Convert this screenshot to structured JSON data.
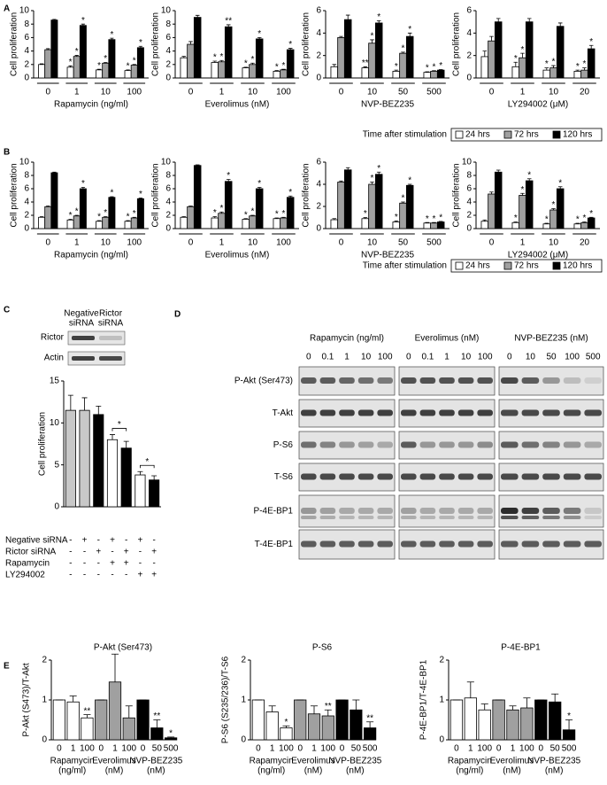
{
  "panel_labels": [
    "A",
    "B",
    "C",
    "D",
    "E"
  ],
  "legend_title": "Time after stimulation",
  "chart_data": [
    {
      "type": "grouped_bar",
      "x_label": "Rapamycin (ng/ml)",
      "y_label": "Cell proliferation",
      "categories": [
        "0",
        "1",
        "10",
        "100"
      ],
      "ylim": [
        0,
        10
      ],
      "yticks": [
        0,
        2,
        4,
        6,
        8,
        10
      ],
      "series": [
        {
          "name": "24 hrs",
          "color": "#ffffff",
          "values": [
            2,
            1.6,
            1.2,
            1.1
          ],
          "errors": [
            0.1,
            0.2,
            0.1,
            0.1
          ],
          "significance": [
            null,
            "*",
            "*",
            "*"
          ]
        },
        {
          "name": "72 hrs",
          "color": "#a0a0a0",
          "values": [
            4.2,
            3.2,
            2.2,
            1.9
          ],
          "errors": [
            0.15,
            0.15,
            0.1,
            0.1
          ],
          "significance": [
            null,
            "*",
            "*",
            "*"
          ]
        },
        {
          "name": "120 hrs",
          "color": "#000000",
          "values": [
            8.6,
            7.8,
            5.7,
            4.5
          ],
          "errors": [
            0.1,
            0.2,
            0.2,
            0.2
          ],
          "significance": [
            null,
            "*",
            "*",
            "*"
          ]
        }
      ]
    },
    {
      "type": "grouped_bar",
      "x_label": "Everolimus (nM)",
      "y_label": "Cell proliferation",
      "categories": [
        "0",
        "1",
        "10",
        "100"
      ],
      "ylim": [
        0,
        10
      ],
      "yticks": [
        0,
        2,
        4,
        6,
        8,
        10
      ],
      "series": [
        {
          "name": "24 hrs",
          "color": "#ffffff",
          "values": [
            3,
            2.3,
            1.5,
            1
          ],
          "errors": [
            0.2,
            0.2,
            0.1,
            0.1
          ],
          "significance": [
            null,
            "*",
            "*",
            "*"
          ]
        },
        {
          "name": "72 hrs",
          "color": "#a0a0a0",
          "values": [
            5,
            2.4,
            2,
            1.2
          ],
          "errors": [
            0.4,
            0.2,
            0.2,
            0.1
          ],
          "significance": [
            null,
            "*",
            "*",
            "*"
          ]
        },
        {
          "name": "120 hrs",
          "color": "#000000",
          "values": [
            9,
            7.6,
            5.8,
            4.2
          ],
          "errors": [
            0.3,
            0.3,
            0.2,
            0.2
          ],
          "significance": [
            null,
            "**",
            "*",
            "*"
          ]
        }
      ]
    },
    {
      "type": "grouped_bar",
      "x_label": "NVP-BEZ235",
      "y_label": "Cell proliferation",
      "categories": [
        "0",
        "10",
        "50",
        "500"
      ],
      "ylim": [
        0,
        6
      ],
      "yticks": [
        0,
        2,
        4,
        6
      ],
      "series": [
        {
          "name": "24 hrs",
          "color": "#ffffff",
          "values": [
            1,
            0.9,
            0.6,
            0.5
          ],
          "errors": [
            0.2,
            0.1,
            0.1,
            0.05
          ],
          "significance": [
            null,
            "**",
            "*",
            "*"
          ]
        },
        {
          "name": "72 hrs",
          "color": "#a0a0a0",
          "values": [
            3.6,
            3.1,
            2.2,
            0.6
          ],
          "errors": [
            0.1,
            0.3,
            0.1,
            0.05
          ],
          "significance": [
            null,
            "*",
            "*",
            "*"
          ]
        },
        {
          "name": "120 hrs",
          "color": "#000000",
          "values": [
            5.2,
            4.9,
            3.7,
            0.7
          ],
          "errors": [
            0.4,
            0.2,
            0.3,
            0.05
          ],
          "significance": [
            null,
            "*",
            "*",
            "*"
          ]
        }
      ]
    },
    {
      "type": "grouped_bar",
      "x_label": "LY294002 (μM)",
      "y_label": "Cell proliferation",
      "categories": [
        "0",
        "1",
        "10",
        "20"
      ],
      "ylim": [
        0,
        6
      ],
      "yticks": [
        0,
        2,
        4,
        6
      ],
      "series": [
        {
          "name": "24 hrs",
          "color": "#ffffff",
          "values": [
            1.9,
            1,
            0.7,
            0.6
          ],
          "errors": [
            0.5,
            0.4,
            0.2,
            0.1
          ],
          "significance": [
            null,
            "*",
            "*",
            "*"
          ]
        },
        {
          "name": "72 hrs",
          "color": "#a0a0a0",
          "values": [
            3.3,
            1.8,
            0.9,
            0.7
          ],
          "errors": [
            0.4,
            0.4,
            0.2,
            0.2
          ],
          "significance": [
            null,
            "*",
            "*",
            "*"
          ]
        },
        {
          "name": "120 hrs",
          "color": "#000000",
          "values": [
            5,
            5,
            4.6,
            2.6
          ],
          "errors": [
            0.3,
            0.3,
            0.3,
            0.3
          ],
          "significance": [
            null,
            null,
            null,
            "*"
          ]
        }
      ]
    },
    {
      "type": "grouped_bar",
      "x_label": "Rapamycin (ng/ml)",
      "y_label": "Cell proliferation",
      "categories": [
        "0",
        "1",
        "10",
        "100"
      ],
      "ylim": [
        0,
        10
      ],
      "yticks": [
        0,
        2,
        4,
        6,
        8,
        10
      ],
      "series": [
        {
          "name": "24 hrs",
          "color": "#ffffff",
          "values": [
            1.7,
            1.3,
            1.1,
            1.1
          ],
          "errors": [
            0.1,
            0.1,
            0.1,
            0.1
          ],
          "significance": [
            null,
            "*",
            "*",
            "*"
          ]
        },
        {
          "name": "72 hrs",
          "color": "#a0a0a0",
          "values": [
            3.3,
            1.9,
            1.7,
            1.6
          ],
          "errors": [
            0.1,
            0.1,
            0.1,
            0.1
          ],
          "significance": [
            null,
            "*",
            "*",
            "*"
          ]
        },
        {
          "name": "120 hrs",
          "color": "#000000",
          "values": [
            8.4,
            6,
            4.7,
            4.5
          ],
          "errors": [
            0.1,
            0.2,
            0.1,
            0.1
          ],
          "significance": [
            null,
            "*",
            "*",
            "*"
          ]
        }
      ]
    },
    {
      "type": "grouped_bar",
      "x_label": "Everolimus (nM)",
      "y_label": "Cell proliferation",
      "categories": [
        "0",
        "1",
        "10",
        "100"
      ],
      "ylim": [
        0,
        10
      ],
      "yticks": [
        0,
        2,
        4,
        6,
        8,
        10
      ],
      "series": [
        {
          "name": "24 hrs",
          "color": "#ffffff",
          "values": [
            1.7,
            1.6,
            1.4,
            1.5
          ],
          "errors": [
            0.1,
            0.2,
            0.1,
            0.1
          ],
          "significance": [
            null,
            "*",
            "*",
            "*"
          ]
        },
        {
          "name": "72 hrs",
          "color": "#a0a0a0",
          "values": [
            3.3,
            2.3,
            1.9,
            1.6
          ],
          "errors": [
            0.1,
            0.2,
            0.1,
            0.1
          ],
          "significance": [
            null,
            "*",
            "*",
            "*"
          ]
        },
        {
          "name": "120 hrs",
          "color": "#000000",
          "values": [
            9.5,
            7.1,
            6,
            4.7
          ],
          "errors": [
            0.1,
            0.3,
            0.2,
            0.2
          ],
          "significance": [
            null,
            "*",
            "*",
            "*"
          ]
        }
      ]
    },
    {
      "type": "grouped_bar",
      "x_label": "NVP-BEZ235",
      "y_label": "Cell proliferation",
      "categories": [
        "0",
        "10",
        "50",
        "500"
      ],
      "ylim": [
        0,
        6
      ],
      "yticks": [
        0,
        2,
        4,
        6
      ],
      "series": [
        {
          "name": "24 hrs",
          "color": "#ffffff",
          "values": [
            0.8,
            0.9,
            0.6,
            0.5
          ],
          "errors": [
            0.1,
            0.1,
            0.1,
            0.05
          ],
          "significance": [
            null,
            "*",
            "*",
            "*"
          ]
        },
        {
          "name": "72 hrs",
          "color": "#a0a0a0",
          "values": [
            4.2,
            4,
            2.3,
            0.5
          ],
          "errors": [
            0.1,
            0.2,
            0.1,
            0.05
          ],
          "significance": [
            null,
            "*",
            "*",
            "*"
          ]
        },
        {
          "name": "120 hrs",
          "color": "#000000",
          "values": [
            5.3,
            4.9,
            3.9,
            0.6
          ],
          "errors": [
            0.2,
            0.2,
            0.1,
            0.05
          ],
          "significance": [
            null,
            "*",
            "*",
            "*"
          ]
        }
      ]
    },
    {
      "type": "grouped_bar",
      "x_label": "LY294002 (μM)",
      "y_label": "Cell proliferation",
      "categories": [
        "0",
        "1",
        "10",
        "20"
      ],
      "ylim": [
        0,
        10
      ],
      "yticks": [
        0,
        2,
        4,
        6,
        8,
        10
      ],
      "series": [
        {
          "name": "24 hrs",
          "color": "#ffffff",
          "values": [
            1.1,
            0.9,
            0.7,
            0.7
          ],
          "errors": [
            0.2,
            0.1,
            0.1,
            0.1
          ],
          "significance": [
            null,
            "*",
            "*",
            "*"
          ]
        },
        {
          "name": "72 hrs",
          "color": "#a0a0a0",
          "values": [
            5.2,
            5,
            2.8,
            0.9
          ],
          "errors": [
            0.3,
            0.3,
            0.2,
            0.1
          ],
          "significance": [
            null,
            "*",
            "*",
            "*"
          ]
        },
        {
          "name": "120 hrs",
          "color": "#000000",
          "values": [
            8.5,
            7.2,
            6,
            1.6
          ],
          "errors": [
            0.3,
            0.3,
            0.3,
            0.1
          ],
          "significance": [
            null,
            "*",
            "*",
            "*"
          ]
        }
      ]
    },
    {
      "type": "bar",
      "y_label": "Cell proliferation",
      "ylim": [
        0,
        15
      ],
      "yticks": [
        0,
        5,
        10,
        15
      ],
      "values": [
        11.5,
        11.5,
        11,
        8,
        7,
        3.8,
        3.2
      ],
      "errors": [
        1.8,
        1.5,
        1,
        0.6,
        0.8,
        0.4,
        0.5
      ],
      "colors": [
        "#c8c8c8",
        "#c8c8c8",
        "#000000",
        "#ffffff",
        "#000000",
        "#ffffff",
        "#000000"
      ],
      "significance": [
        null,
        null,
        null,
        null,
        "*",
        null,
        "*"
      ],
      "conditions": [
        {
          "name": "Negative siRNA",
          "signs": [
            "-",
            "+",
            "-",
            "+",
            "-",
            "+",
            "-"
          ]
        },
        {
          "name": "Rictor siRNA",
          "signs": [
            "-",
            "-",
            "+",
            "-",
            "+",
            "-",
            "+"
          ]
        },
        {
          "name": "Rapamycin",
          "signs": [
            "-",
            "-",
            "-",
            "+",
            "+",
            "-",
            "-"
          ]
        },
        {
          "name": "LY294002",
          "signs": [
            "-",
            "-",
            "-",
            "-",
            "-",
            "+",
            "+"
          ]
        }
      ]
    },
    {
      "type": "bar",
      "title": "P-Akt (Ser473)",
      "y_label": "P-Akt (S473)/T-Akt",
      "ylim": [
        0,
        2
      ],
      "yticks": [
        0,
        1,
        2
      ],
      "categories": [
        "0",
        "1",
        "100",
        "0",
        "1",
        "100",
        "0",
        "50",
        "500"
      ],
      "groups": [
        [
          "Rapamycin",
          "(ng/ml)"
        ],
        [
          "Everolimus",
          "(nM)"
        ],
        [
          "NVP-BEZ235",
          "(nM)"
        ]
      ],
      "values": [
        1,
        0.95,
        0.55,
        1,
        1.45,
        0.55,
        1,
        0.3,
        0.05
      ],
      "errors": [
        0,
        0.15,
        0.08,
        0,
        0.7,
        0.3,
        0,
        0.2,
        0.02
      ],
      "colors": [
        "#ffffff",
        "#ffffff",
        "#ffffff",
        "#a0a0a0",
        "#a0a0a0",
        "#a0a0a0",
        "#000000",
        "#000000",
        "#000000"
      ],
      "significance": [
        null,
        null,
        "**",
        null,
        null,
        null,
        null,
        "**",
        "*"
      ]
    },
    {
      "type": "bar",
      "title": "P-S6",
      "y_label": "P-S6 (S235/236)/T-S6",
      "ylim": [
        0,
        2
      ],
      "yticks": [
        0,
        1,
        2
      ],
      "categories": [
        "0",
        "1",
        "100",
        "0",
        "1",
        "100",
        "0",
        "50",
        "500"
      ],
      "groups": [
        [
          "Rapamycin",
          "(ng/ml)"
        ],
        [
          "Everolimus",
          "(nM)"
        ],
        [
          "NVP-BEZ235",
          "(nM)"
        ]
      ],
      "values": [
        1,
        0.7,
        0.3,
        1,
        0.65,
        0.6,
        1,
        0.75,
        0.3
      ],
      "errors": [
        0,
        0.15,
        0.05,
        0,
        0.2,
        0.15,
        0,
        0.25,
        0.15
      ],
      "colors": [
        "#ffffff",
        "#ffffff",
        "#ffffff",
        "#a0a0a0",
        "#a0a0a0",
        "#a0a0a0",
        "#000000",
        "#000000",
        "#000000"
      ],
      "significance": [
        null,
        null,
        "*",
        null,
        null,
        "**",
        null,
        null,
        "**"
      ]
    },
    {
      "type": "bar",
      "title": "P-4E-BP1",
      "y_label": "P-4E-BP1/T-4E-BP1",
      "ylim": [
        0,
        2
      ],
      "yticks": [
        0,
        1,
        2
      ],
      "categories": [
        "0",
        "1",
        "100",
        "0",
        "1",
        "100",
        "0",
        "50",
        "500"
      ],
      "groups": [
        [
          "Rapamycin",
          "(ng/ml)"
        ],
        [
          "Everolimus",
          "(nM)"
        ],
        [
          "NVP-BEZ235",
          "(nM)"
        ]
      ],
      "values": [
        1,
        1.05,
        0.75,
        1,
        0.75,
        0.8,
        1,
        0.95,
        0.25
      ],
      "errors": [
        0,
        0.4,
        0.15,
        0,
        0.1,
        0.25,
        0,
        0.2,
        0.25
      ],
      "colors": [
        "#ffffff",
        "#ffffff",
        "#ffffff",
        "#a0a0a0",
        "#a0a0a0",
        "#a0a0a0",
        "#000000",
        "#000000",
        "#000000"
      ],
      "significance": [
        null,
        null,
        null,
        null,
        null,
        null,
        null,
        null,
        "*"
      ]
    }
  ],
  "blot_c": {
    "column_labels": [
      [
        "Negative",
        "siRNA"
      ],
      [
        "Rictor",
        "siRNA"
      ]
    ],
    "row_labels": [
      "Rictor",
      "Actin"
    ]
  },
  "blot_d": {
    "groups": [
      {
        "label": "Rapamycin (ng/ml)",
        "lanes": [
          "0",
          "0.1",
          "1",
          "10",
          "100"
        ]
      },
      {
        "label": "Everolimus (nM)",
        "lanes": [
          "0",
          "0.1",
          "1",
          "10",
          "100"
        ]
      },
      {
        "label": "NVP-BEZ235 (nM)",
        "lanes": [
          "0",
          "10",
          "50",
          "100",
          "500"
        ]
      }
    ],
    "row_labels": [
      "P-Akt (Ser473)",
      "T-Akt",
      "P-S6",
      "T-S6",
      "P-4E-BP1",
      "T-4E-BP1"
    ]
  }
}
